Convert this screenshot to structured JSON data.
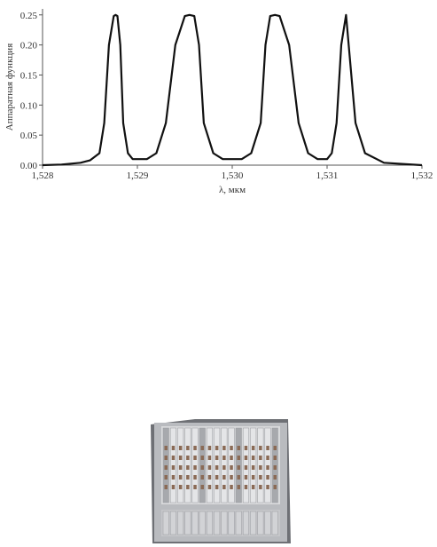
{
  "chart_data": {
    "type": "line",
    "title": "",
    "xlabel": "λ, мкм",
    "ylabel": "Аппаратная функция",
    "xlim": [
      1.528,
      1.532
    ],
    "ylim": [
      0,
      0.26
    ],
    "x_ticks": [
      "1,528",
      "1,529",
      "1,530",
      "1,531",
      "1,532"
    ],
    "y_ticks": [
      "0.00",
      "0.05",
      "0.10",
      "0.15",
      "0.20",
      "0.25"
    ],
    "grid": false,
    "series": [
      {
        "x": [
          1.528,
          1.5282,
          1.5284,
          1.5285,
          1.5286,
          1.52865,
          1.5287,
          1.52875,
          1.52877,
          1.52879,
          1.52882,
          1.52885,
          1.5289,
          1.52895,
          1.529,
          1.5291,
          1.5292,
          1.5293,
          1.5294,
          1.5295,
          1.52955,
          1.5296,
          1.52965,
          1.5297,
          1.5298,
          1.5299,
          1.53,
          1.5301,
          1.5302,
          1.5303,
          1.53035,
          1.5304,
          1.53045,
          1.5305,
          1.5306,
          1.5307,
          1.5308,
          1.5309,
          1.531,
          1.53105,
          1.5311,
          1.53115,
          1.5312,
          1.5313,
          1.5314,
          1.5316,
          1.532
        ],
        "values": [
          0.0,
          0.001,
          0.004,
          0.008,
          0.02,
          0.07,
          0.2,
          0.248,
          0.25,
          0.248,
          0.2,
          0.07,
          0.02,
          0.01,
          0.01,
          0.01,
          0.02,
          0.07,
          0.2,
          0.248,
          0.25,
          0.248,
          0.2,
          0.07,
          0.02,
          0.01,
          0.01,
          0.01,
          0.02,
          0.07,
          0.2,
          0.248,
          0.25,
          0.248,
          0.2,
          0.07,
          0.02,
          0.01,
          0.01,
          0.02,
          0.07,
          0.2,
          0.25,
          0.07,
          0.02,
          0.004,
          0.0
        ]
      }
    ]
  },
  "photo": {
    "icon": "telecom-equipment-rack-icon",
    "colors": {
      "chassis": "#b9bbbf",
      "panel": "#d9dadc",
      "port": "#8a6a55",
      "shadow": "#6e7075"
    }
  }
}
